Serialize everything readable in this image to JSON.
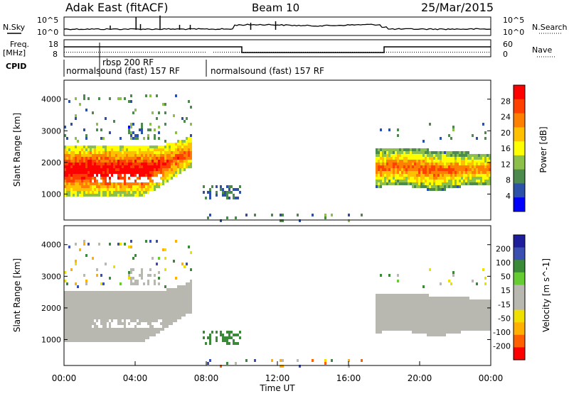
{
  "header": {
    "station": "Adak East (fitACF)",
    "beam": "Beam 10",
    "date": "25/Mar/2015"
  },
  "left_labels": {
    "nsky": "N.Sky",
    "freq": "Freq.",
    "freq_unit": "[MHz]",
    "cpid": "CPID"
  },
  "right_labels": {
    "nsearch": "N.Search",
    "nave": "Nave"
  },
  "noise_axis": {
    "top": "10^5",
    "bottom": "10^0"
  },
  "freq_axis": {
    "left_top": "18",
    "left_bottom": "8",
    "right_top": "60",
    "right_bottom": "0"
  },
  "cpid_labels": [
    {
      "text": "normalsound (fast) 157 RF",
      "start_hour": 0
    },
    {
      "text": "rbsp 200 RF",
      "start_hour": 2
    },
    {
      "text": "normalsound (fast) 157 RF",
      "start_hour": 8
    }
  ],
  "x_axis": {
    "label": "Time UT",
    "ticks": [
      "00:00",
      "04:00",
      "08:00",
      "12:00",
      "16:00",
      "20:00",
      "00:00"
    ]
  },
  "colors": {
    "power": [
      "#0000ff",
      "#2d50a8",
      "#4d8a4d",
      "#8cc04a",
      "#ffff00",
      "#ffc000",
      "#ff8000",
      "#ff4000",
      "#ff0000"
    ],
    "velocity_pos": [
      "#1e1e9a",
      "#3b4fb0",
      "#3a8a3a",
      "#66cc33"
    ],
    "velocity_neg": [
      "#f0e000",
      "#ffb000",
      "#ff6000",
      "#ff0000"
    ],
    "ground": "#b8b8b0"
  },
  "chart_data": [
    {
      "type": "heatmap",
      "name": "power",
      "ylabel": "Slant Range [km]",
      "xlabel": "Time UT",
      "xlim": [
        0,
        24
      ],
      "ylim": [
        180,
        4600
      ],
      "yticks": [
        1000,
        2000,
        3000,
        4000
      ],
      "colorbar": {
        "label": "Power [dB]",
        "ticks": [
          4,
          8,
          12,
          16,
          20,
          24,
          28
        ],
        "range": [
          0,
          32
        ]
      },
      "features": [
        {
          "desc": "main band",
          "t_start": 0.0,
          "t_end": 7.0,
          "r_low": 900,
          "r_high": 2600,
          "level": 24
        },
        {
          "desc": "rising arc",
          "t_start": 5.0,
          "t_end": 7.2,
          "r_low": 1000,
          "r_high": 2800,
          "level": 22
        },
        {
          "desc": "evening band",
          "t_start": 17.5,
          "t_end": 24.0,
          "r_low": 1200,
          "r_high": 2500,
          "level": 20
        }
      ]
    },
    {
      "type": "heatmap",
      "name": "velocity",
      "ylabel": "Slant Range [km]",
      "xlabel": "Time UT",
      "xlim": [
        0,
        24
      ],
      "ylim": [
        180,
        4600
      ],
      "yticks": [
        1000,
        2000,
        3000,
        4000
      ],
      "colorbar": {
        "label": "Velocity [m s^-1]",
        "ticks": [
          200,
          100,
          50,
          15,
          -15,
          -50,
          -100,
          -200
        ]
      }
    }
  ]
}
